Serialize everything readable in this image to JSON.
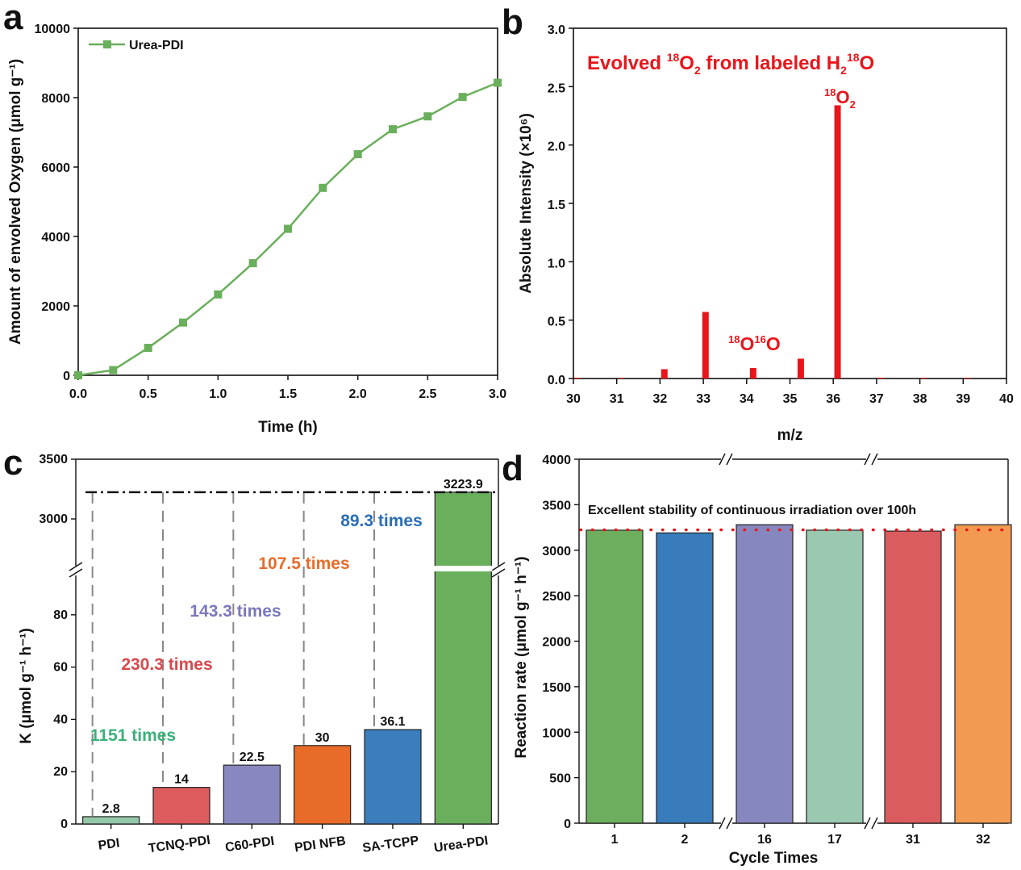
{
  "chart_data": [
    {
      "panel": "a",
      "type": "line",
      "xlabel": "Time (h)",
      "ylabel": "Amount of envolved Oxygen (μmol g⁻¹)",
      "xlim": [
        0,
        3.0
      ],
      "ylim": [
        0,
        10000
      ],
      "xticks": [
        "0.0",
        "0.5",
        "1.0",
        "1.5",
        "2.0",
        "2.5",
        "3.0"
      ],
      "xtick_values": [
        0,
        0.5,
        1.0,
        1.5,
        2.0,
        2.5,
        3.0
      ],
      "yticks": [
        "0",
        "2000",
        "4000",
        "6000",
        "8000",
        "10000"
      ],
      "ytick_values": [
        0,
        2000,
        4000,
        6000,
        8000,
        10000
      ],
      "legend_position": "top-left",
      "series": [
        {
          "name": "Urea-PDI",
          "color": "#6aaf5c",
          "x": [
            0,
            0.25,
            0.5,
            0.75,
            1.0,
            1.25,
            1.5,
            1.75,
            2.0,
            2.25,
            2.5,
            2.75,
            3.0
          ],
          "y": [
            0,
            150,
            790,
            1520,
            2330,
            3230,
            4220,
            5400,
            6370,
            7090,
            7460,
            8020,
            8430
          ]
        }
      ]
    },
    {
      "panel": "b",
      "type": "bar",
      "xlabel": "m/z",
      "ylabel": "Absolute Intensity (×10⁶)",
      "xlim": [
        30,
        40
      ],
      "ylim": [
        0,
        3.0
      ],
      "xticks": [
        "30",
        "31",
        "32",
        "33",
        "34",
        "35",
        "36",
        "37",
        "38",
        "39",
        "40"
      ],
      "xtick_values": [
        30,
        31,
        32,
        33,
        34,
        35,
        36,
        37,
        38,
        39,
        40
      ],
      "yticks": [
        "0.0",
        "0.5",
        "1.0",
        "1.5",
        "2.0",
        "2.5",
        "3.0"
      ],
      "ytick_values": [
        0,
        0.5,
        1.0,
        1.5,
        2.0,
        2.5,
        3.0
      ],
      "color": "#e8161b",
      "x": [
        30.1,
        31.1,
        32.1,
        33.05,
        34.15,
        35.25,
        36.1,
        37.1,
        38.1,
        39.1
      ],
      "values": [
        0.005,
        0.005,
        0.08,
        0.57,
        0.09,
        0.17,
        2.34,
        0.005,
        0.005,
        0.005
      ],
      "annotation_title": {
        "pre": "Evolved ",
        "sup1": "18",
        "main": "O",
        "sub1": "2",
        "mid": " from labeled H",
        "sub2": "2",
        "sup2": "18",
        "end": "O"
      },
      "annotation_18O2": {
        "sup": "18",
        "main": "O",
        "sub": "2"
      },
      "annotation_18O16O": {
        "sup1": "18",
        "a": "O",
        "sup2": "16",
        "b": "O"
      }
    },
    {
      "panel": "c",
      "type": "bar",
      "ylabel": "K (μmol g⁻¹ h⁻¹)",
      "categories": [
        "PDI",
        "TCNQ-PDI",
        "C60-PDI",
        "PDI NFB",
        "SA-TCPP",
        "Urea-PDI"
      ],
      "values": [
        2.8,
        14,
        22.5,
        30,
        36.1,
        3223.9
      ],
      "value_labels": [
        "2.8",
        "14",
        "22.5",
        "30",
        "36.1",
        "3223.9"
      ],
      "colors": [
        "#93c9a8",
        "#dc5c5e",
        "#8887bf",
        "#e86b29",
        "#3a7ebd",
        "#6aaf5c"
      ],
      "yticks_lower": [
        "0",
        "20",
        "40",
        "60",
        "80"
      ],
      "ytick_lower_values": [
        0,
        20,
        40,
        60,
        80
      ],
      "ylim_lower": [
        0,
        100
      ],
      "yticks_upper": [
        "3000",
        "3500"
      ],
      "ytick_upper_values": [
        3000,
        3500
      ],
      "ylim_upper": [
        2680,
        3500
      ],
      "axis_break": true,
      "reference_line": 3223.9,
      "ratio_annotations": [
        {
          "text": "1151 times",
          "color": "#3bb27a"
        },
        {
          "text": "230.3 times",
          "color": "#d9484c"
        },
        {
          "text": "143.3 times",
          "color": "#7a78bb"
        },
        {
          "text": "107.5 times",
          "color": "#e86b29"
        },
        {
          "text": "89.3 times",
          "color": "#2a6db5"
        }
      ]
    },
    {
      "panel": "d",
      "type": "bar",
      "xlabel": "Cycle Times",
      "ylabel": "Reaction rate (μmol g⁻¹ h⁻¹)",
      "categories": [
        "1",
        "2",
        "16",
        "17",
        "31",
        "32"
      ],
      "values": [
        3220,
        3190,
        3280,
        3220,
        3210,
        3280
      ],
      "colors": [
        "#6daf5e",
        "#387cbb",
        "#8787bf",
        "#9ac8b0",
        "#db5c5e",
        "#f29a52"
      ],
      "ylim": [
        0,
        4000
      ],
      "yticks": [
        "0",
        "500",
        "1000",
        "1500",
        "2000",
        "2500",
        "3000",
        "3500",
        "4000"
      ],
      "ytick_values": [
        0,
        500,
        1000,
        1500,
        2000,
        2500,
        3000,
        3500,
        4000
      ],
      "reference_line": 3224,
      "reference_color": "#e8161b",
      "axis_breaks_after": [
        "2",
        "17"
      ],
      "annotation": "Excellent stability of continuous irradiation over 100h"
    }
  ],
  "panels": {
    "a": "a",
    "b": "b",
    "c": "c",
    "d": "d"
  }
}
